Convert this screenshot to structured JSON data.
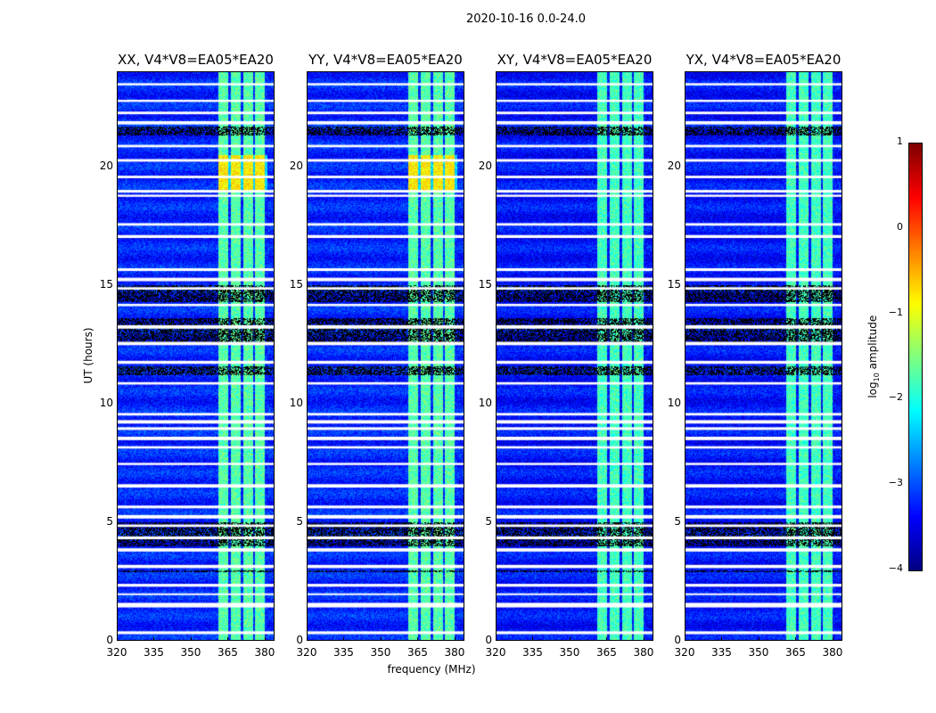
{
  "figure_title": "2020-10-16 0.0-24.0",
  "chart_data": {
    "type": "heatmap",
    "title": "2020-10-16 0.0-24.0",
    "xlabel": "frequency (MHz)",
    "ylabel": "UT (hours)",
    "xlim": [
      320,
      384
    ],
    "ylim": [
      0,
      24
    ],
    "xticks": [
      320,
      335,
      350,
      365,
      380
    ],
    "yticks": [
      0,
      5,
      10,
      15,
      20
    ],
    "panels": [
      {
        "title": "XX, V4*V8=EA05*EA20",
        "background_log_amp": -3.2,
        "band_log_amp": -1.7
      },
      {
        "title": "YY, V4*V8=EA05*EA20",
        "background_log_amp": -3.2,
        "band_log_amp": -1.7
      },
      {
        "title": "XY, V4*V8=EA05*EA20",
        "background_log_amp": -3.3,
        "band_log_amp": -1.8
      },
      {
        "title": "YX, V4*V8=EA05*EA20",
        "background_log_amp": -3.3,
        "band_log_amp": -1.8
      }
    ],
    "rfi_band_mhz": [
      361,
      381
    ],
    "flagged_hours": [
      23.5,
      22.8,
      22.3,
      21.9,
      20.9,
      20.3,
      19.6,
      19.0,
      18.8,
      17.6,
      17.1,
      15.7,
      15.3,
      14.9,
      14.2,
      13.3,
      12.6,
      11.8,
      10.9,
      9.6,
      9.3,
      9.0,
      8.6,
      8.2,
      7.5,
      6.6,
      5.7,
      5.3,
      4.9,
      4.4,
      3.9,
      3.2,
      2.4,
      2.0,
      1.6,
      1.5,
      0.4
    ],
    "dark_ranges_hours": [
      [
        21.3,
        21.7
      ],
      [
        14.3,
        15.0
      ],
      [
        12.5,
        13.6
      ],
      [
        11.2,
        11.6
      ],
      [
        4.0,
        5.0
      ],
      [
        2.9,
        3.0
      ]
    ],
    "colorbar": {
      "label": "log10 amplitude",
      "label_main": "log",
      "label_sub": "10",
      "label_rest": " amplitude",
      "range": [
        -4,
        1
      ],
      "ticks": [
        -4,
        -3,
        -2,
        -1,
        0,
        1
      ],
      "colormap": "jet"
    }
  }
}
